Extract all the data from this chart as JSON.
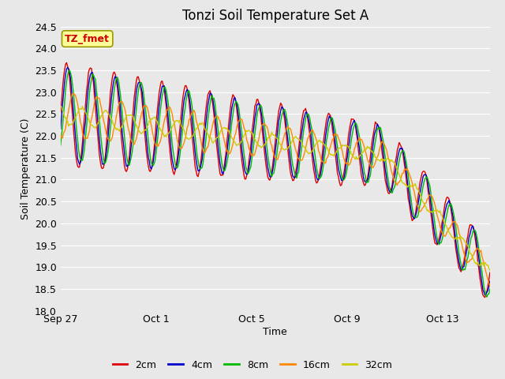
{
  "title": "Tonzi Soil Temperature Set A",
  "xlabel": "Time",
  "ylabel": "Soil Temperature (C)",
  "ylim": [
    18.0,
    24.5
  ],
  "yticks": [
    18.0,
    18.5,
    19.0,
    19.5,
    20.0,
    20.5,
    21.0,
    21.5,
    22.0,
    22.5,
    23.0,
    23.5,
    24.0,
    24.5
  ],
  "xtick_labels": [
    "Sep 27",
    "Oct 1",
    "Oct 5",
    "Oct 9",
    "Oct 13"
  ],
  "xtick_positions": [
    0,
    4,
    8,
    12,
    16
  ],
  "xlim": [
    0,
    18
  ],
  "line_colors": [
    "#dd0000",
    "#0000cc",
    "#00bb00",
    "#ff8800",
    "#cccc00"
  ],
  "line_labels": [
    "2cm",
    "4cm",
    "8cm",
    "16cm",
    "32cm"
  ],
  "line_width": 1.0,
  "fig_bg_color": "#e8e8e8",
  "plot_bg_color": "#e8e8e8",
  "grid_color": "#ffffff",
  "annotation_text": "TZ_fmet",
  "annotation_bg": "#ffff99",
  "annotation_fg": "#cc0000",
  "title_fontsize": 12,
  "axis_label_fontsize": 9,
  "tick_fontsize": 9
}
